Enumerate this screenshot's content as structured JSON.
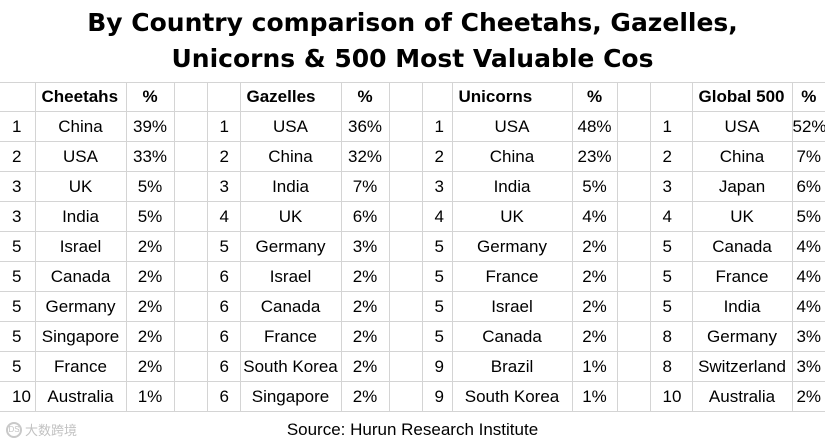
{
  "title": {
    "line1": "By Country comparison of Cheetahs, Gazelles,",
    "line2": "Unicorns & 500 Most Valuable Cos"
  },
  "groups": [
    {
      "key": "cheetahs",
      "header": "Cheetahs",
      "pct_header": "%",
      "rows": [
        {
          "rank": "1",
          "country": "China",
          "pct": "39%"
        },
        {
          "rank": "2",
          "country": "USA",
          "pct": "33%"
        },
        {
          "rank": "3",
          "country": "UK",
          "pct": "5%"
        },
        {
          "rank": "3",
          "country": "India",
          "pct": "5%"
        },
        {
          "rank": "5",
          "country": "Israel",
          "pct": "2%"
        },
        {
          "rank": "5",
          "country": "Canada",
          "pct": "2%"
        },
        {
          "rank": "5",
          "country": "Germany",
          "pct": "2%"
        },
        {
          "rank": "5",
          "country": "Singapore",
          "pct": "2%"
        },
        {
          "rank": "5",
          "country": "France",
          "pct": "2%"
        },
        {
          "rank": "10",
          "country": "Australia",
          "pct": "1%"
        }
      ]
    },
    {
      "key": "gazelles",
      "header": "Gazelles",
      "pct_header": "%",
      "rows": [
        {
          "rank": "1",
          "country": "USA",
          "pct": "36%"
        },
        {
          "rank": "2",
          "country": "China",
          "pct": "32%"
        },
        {
          "rank": "3",
          "country": "India",
          "pct": "7%"
        },
        {
          "rank": "4",
          "country": "UK",
          "pct": "6%"
        },
        {
          "rank": "5",
          "country": "Germany",
          "pct": "3%"
        },
        {
          "rank": "6",
          "country": "Israel",
          "pct": "2%"
        },
        {
          "rank": "6",
          "country": "Canada",
          "pct": "2%"
        },
        {
          "rank": "6",
          "country": "France",
          "pct": "2%"
        },
        {
          "rank": "6",
          "country": "South Korea",
          "pct": "2%"
        },
        {
          "rank": "6",
          "country": "Singapore",
          "pct": "2%"
        }
      ]
    },
    {
      "key": "unicorns",
      "header": "Unicorns",
      "pct_header": "%",
      "rows": [
        {
          "rank": "1",
          "country": "USA",
          "pct": "48%"
        },
        {
          "rank": "2",
          "country": "China",
          "pct": "23%"
        },
        {
          "rank": "3",
          "country": "India",
          "pct": "5%"
        },
        {
          "rank": "4",
          "country": "UK",
          "pct": "4%"
        },
        {
          "rank": "5",
          "country": "Germany",
          "pct": "2%"
        },
        {
          "rank": "5",
          "country": "France",
          "pct": "2%"
        },
        {
          "rank": "5",
          "country": "Israel",
          "pct": "2%"
        },
        {
          "rank": "5",
          "country": "Canada",
          "pct": "2%"
        },
        {
          "rank": "9",
          "country": "Brazil",
          "pct": "1%"
        },
        {
          "rank": "9",
          "country": "South Korea",
          "pct": "1%"
        }
      ]
    },
    {
      "key": "global500",
      "header": "Global 500",
      "pct_header": "%",
      "rows": [
        {
          "rank": "1",
          "country": "USA",
          "pct": "52%"
        },
        {
          "rank": "2",
          "country": "China",
          "pct": "7%"
        },
        {
          "rank": "3",
          "country": "Japan",
          "pct": "6%"
        },
        {
          "rank": "4",
          "country": "UK",
          "pct": "5%"
        },
        {
          "rank": "5",
          "country": "Canada",
          "pct": "4%"
        },
        {
          "rank": "5",
          "country": "France",
          "pct": "4%"
        },
        {
          "rank": "5",
          "country": "India",
          "pct": "4%"
        },
        {
          "rank": "8",
          "country": "Germany",
          "pct": "3%"
        },
        {
          "rank": "8",
          "country": "Switzerland",
          "pct": "3%"
        },
        {
          "rank": "10",
          "country": "Australia",
          "pct": "2%"
        }
      ]
    }
  ],
  "footer": "Source: Hurun Research Institute",
  "watermark": {
    "text": "大数跨境",
    "logo": "DS"
  }
}
